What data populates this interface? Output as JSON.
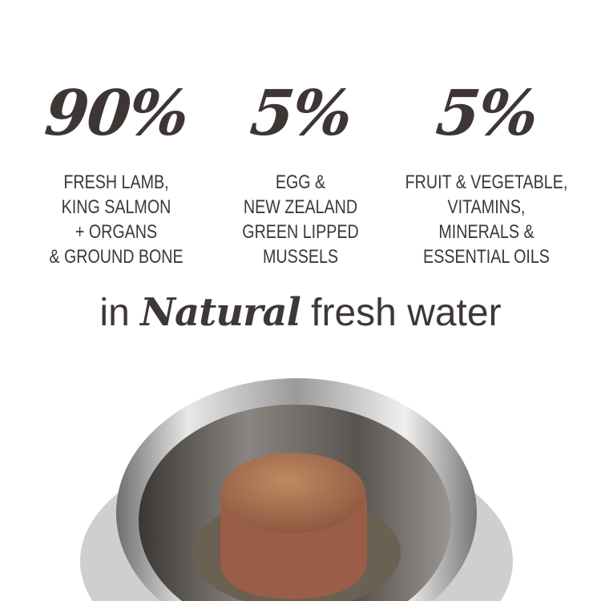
{
  "columns": [
    {
      "percent": "90%",
      "lines": [
        "FRESH LAMB,",
        "KING SALMON",
        "+ ORGANS",
        "& GROUND BONE"
      ]
    },
    {
      "percent": "5%",
      "lines": [
        "EGG &",
        "NEW ZEALAND",
        "GREEN LIPPED",
        "MUSSELS"
      ]
    },
    {
      "percent": "5%",
      "lines": [
        "FRUIT & VEGETABLE,",
        "VITAMINS,",
        "MINERALS &",
        "ESSENTIAL OILS"
      ]
    }
  ],
  "tagline": {
    "prefix": "in",
    "emphasis": "Natural",
    "suffix": "fresh water"
  },
  "colors": {
    "text": "#3e3737",
    "background": "#ffffff"
  },
  "image": {
    "subject": "stainless steel bowl with food puck"
  }
}
